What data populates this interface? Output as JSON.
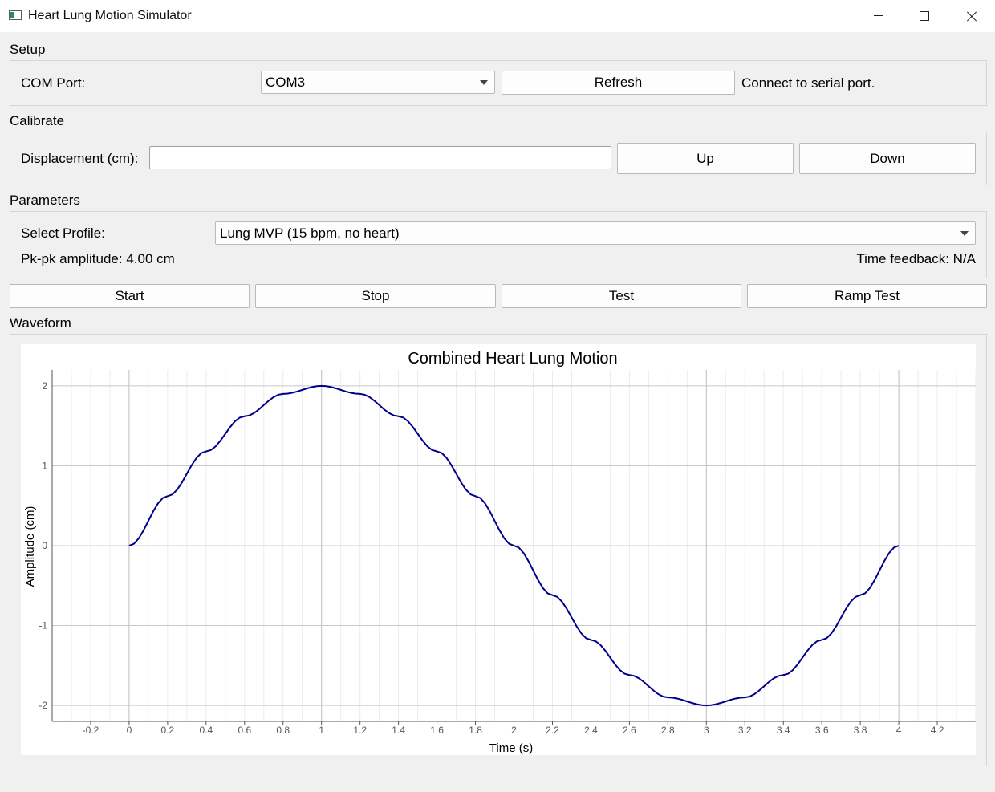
{
  "window": {
    "title": "Heart Lung Motion Simulator",
    "icons": [
      "app-icon",
      "minimize-icon",
      "maximize-icon",
      "close-icon"
    ]
  },
  "setup": {
    "section_label": "Setup",
    "com_port_label": "COM Port:",
    "com_port_value": "COM3",
    "refresh_label": "Refresh",
    "status": "Connect to serial port."
  },
  "calibrate": {
    "section_label": "Calibrate",
    "displacement_label": "Displacement (cm):",
    "displacement_value": "",
    "up_label": "Up",
    "down_label": "Down"
  },
  "parameters": {
    "section_label": "Parameters",
    "profile_label": "Select Profile:",
    "profile_value": "Lung MVP (15 bpm, no heart)",
    "amplitude_text": "Pk-pk amplitude: 4.00 cm",
    "time_feedback_text": "Time feedback: N/A"
  },
  "controls": {
    "start_label": "Start",
    "stop_label": "Stop",
    "test_label": "Test",
    "ramp_test_label": "Ramp Test"
  },
  "waveform": {
    "section_label": "Waveform"
  },
  "chart_data": {
    "type": "line",
    "title": "Combined Heart Lung Motion",
    "xlabel": "Time (s)",
    "ylabel": "Amplitude (cm)",
    "xlim": [
      -0.4,
      4.4
    ],
    "ylim": [
      -2.2,
      2.2
    ],
    "x_ticks": [
      "-0.2",
      "0",
      "0.2",
      "0.4",
      "0.6",
      "0.8",
      "1",
      "1.2",
      "1.4",
      "1.6",
      "1.8",
      "2",
      "2.2",
      "2.4",
      "2.6",
      "2.8",
      "3",
      "3.2",
      "3.4",
      "3.6",
      "3.8",
      "4",
      "4.2"
    ],
    "y_ticks": [
      "2",
      "1",
      "0",
      "-1",
      "-2"
    ],
    "grid": true,
    "line_color": "#00008b",
    "series": [
      {
        "x": [
          0,
          0.2,
          0.4,
          0.6,
          0.8,
          1.0,
          1.2,
          1.4,
          1.6,
          1.8,
          2.0,
          2.2,
          2.4,
          2.6,
          2.8,
          3.0,
          3.2,
          3.4,
          3.6,
          3.8,
          4.0
        ],
        "values": [
          0,
          0.62,
          1.18,
          1.62,
          1.9,
          2.0,
          1.9,
          1.62,
          1.18,
          0.62,
          0,
          -0.62,
          -1.18,
          -1.62,
          -1.9,
          -2.0,
          -1.9,
          -1.62,
          -1.18,
          -0.62,
          0
        ]
      }
    ]
  }
}
